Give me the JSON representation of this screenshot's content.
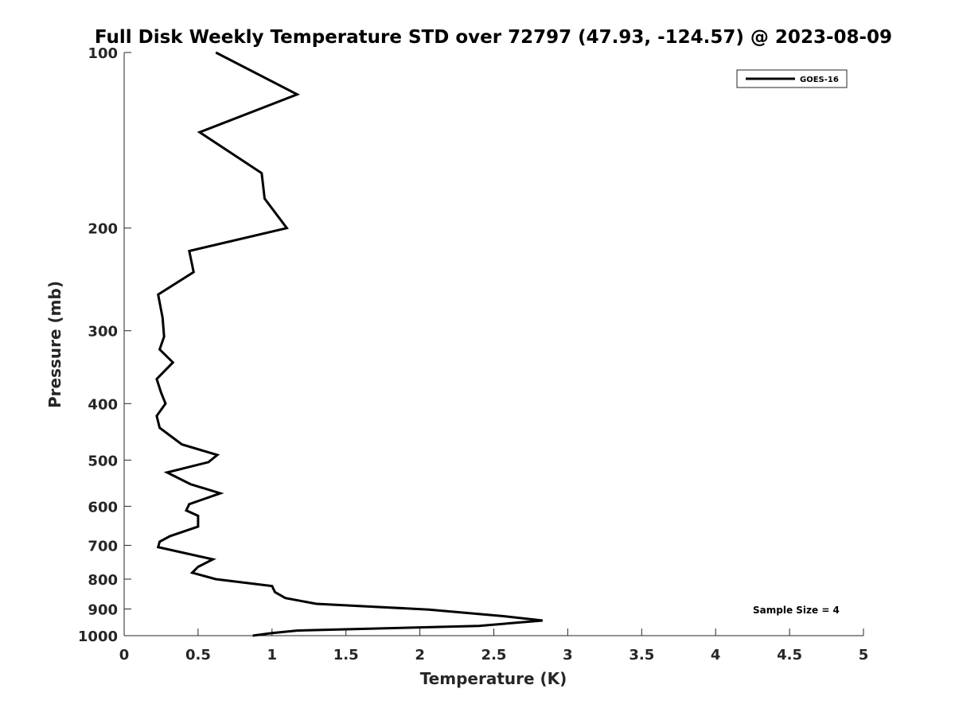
{
  "chart_data": {
    "type": "line",
    "title": "Full Disk Weekly Temperature STD over 72797 (47.93, -124.57) @ 2023-08-09",
    "xlabel": "Temperature (K)",
    "ylabel": "Pressure (mb)",
    "xlim": [
      0,
      5
    ],
    "ylim": [
      100,
      1000
    ],
    "y_scale": "log",
    "y_reversed": true,
    "x_ticks": [
      "0",
      "0.5",
      "1",
      "1.5",
      "2",
      "2.5",
      "3",
      "3.5",
      "4",
      "4.5",
      "5"
    ],
    "y_ticks": [
      "100",
      "200",
      "300",
      "400",
      "500",
      "600",
      "700",
      "800",
      "900",
      "1000"
    ],
    "grid": false,
    "legend_position": "top-right",
    "color": "#000000",
    "series": [
      {
        "name": "GOES-16",
        "points": [
          [
            0.62,
            100
          ],
          [
            1.17,
            118
          ],
          [
            0.51,
            137
          ],
          [
            0.93,
            161
          ],
          [
            0.95,
            178
          ],
          [
            1.1,
            200
          ],
          [
            0.44,
            219
          ],
          [
            0.47,
            238
          ],
          [
            0.23,
            260
          ],
          [
            0.26,
            285
          ],
          [
            0.27,
            307
          ],
          [
            0.24,
            323
          ],
          [
            0.33,
            340
          ],
          [
            0.22,
            363
          ],
          [
            0.25,
            383
          ],
          [
            0.28,
            400
          ],
          [
            0.22,
            420
          ],
          [
            0.24,
            440
          ],
          [
            0.39,
            470
          ],
          [
            0.63,
            490
          ],
          [
            0.57,
            504
          ],
          [
            0.29,
            525
          ],
          [
            0.45,
            550
          ],
          [
            0.65,
            570
          ],
          [
            0.44,
            595
          ],
          [
            0.42,
            610
          ],
          [
            0.5,
            623
          ],
          [
            0.5,
            650
          ],
          [
            0.31,
            675
          ],
          [
            0.24,
            690
          ],
          [
            0.23,
            705
          ],
          [
            0.6,
            740
          ],
          [
            0.5,
            762
          ],
          [
            0.46,
            780
          ],
          [
            0.62,
            800
          ],
          [
            1.0,
            822
          ],
          [
            1.02,
            842
          ],
          [
            1.09,
            862
          ],
          [
            1.3,
            882
          ],
          [
            2.06,
            902
          ],
          [
            2.55,
            925
          ],
          [
            2.83,
            942
          ],
          [
            2.4,
            962
          ],
          [
            1.17,
            980
          ],
          [
            1.0,
            990
          ],
          [
            0.87,
            1000
          ]
        ]
      }
    ],
    "annotations": [
      {
        "text": "Sample Size = 4",
        "position": "bottom-right"
      }
    ]
  }
}
